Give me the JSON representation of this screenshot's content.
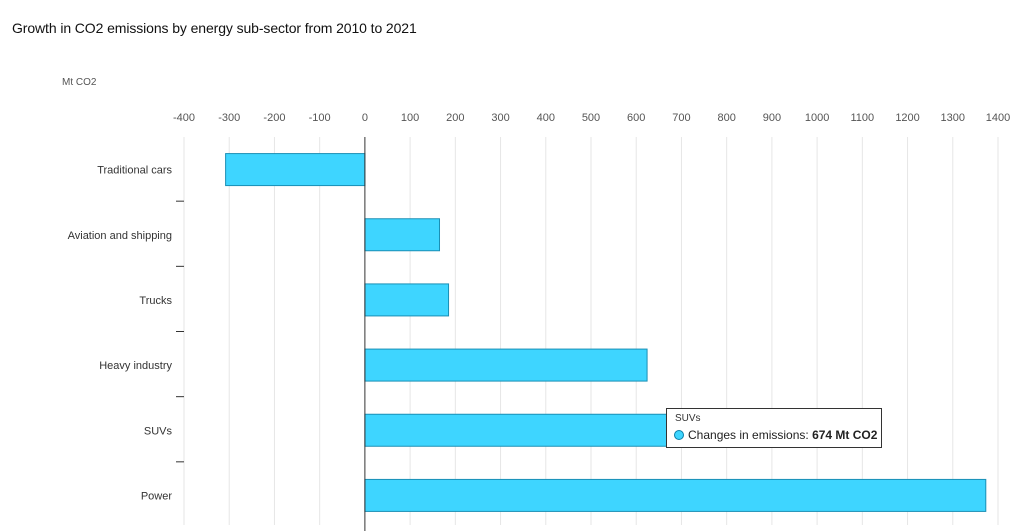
{
  "chart_data": {
    "type": "bar",
    "orientation": "horizontal",
    "title": "Growth in CO2 emissions by energy sub-sector from 2010 to 2021",
    "unit_label": "Mt CO2",
    "categories": [
      "Traditional cars",
      "Aviation and shipping",
      "Trucks",
      "Heavy industry",
      "SUVs",
      "Power"
    ],
    "series": [
      {
        "values": [
          -308,
          165,
          185,
          624,
          674,
          1373
        ]
      }
    ],
    "xlim": [
      -400,
      1400
    ],
    "xticks": [
      -400,
      -300,
      -200,
      -100,
      0,
      100,
      200,
      300,
      400,
      500,
      600,
      700,
      800,
      900,
      1000,
      1100,
      1200,
      1300,
      1400
    ],
    "grid": true,
    "bar_color": "#3ed5ff",
    "bar_stroke": "#1a8fb5",
    "tooltip": {
      "series": "SUVs",
      "label": "Changes in emissions:",
      "value": "674 Mt CO2"
    }
  }
}
